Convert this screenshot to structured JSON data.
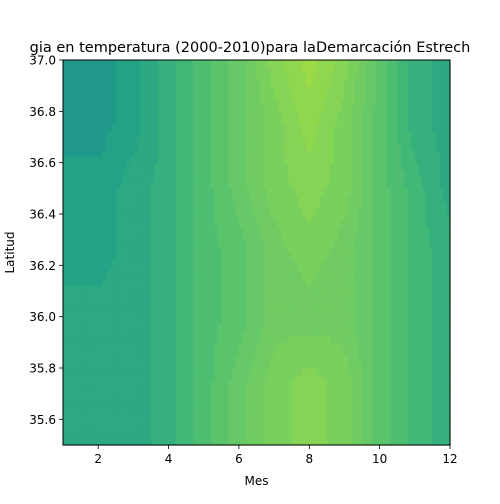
{
  "chart_data": {
    "type": "heatmap",
    "title": "gia en temperatura (2000-2010)para laDemarcación Estrech",
    "xlabel": "Mes",
    "ylabel": "Latitud",
    "xlim": [
      1,
      12
    ],
    "ylim": [
      35.5,
      37.0
    ],
    "xticks": [
      2,
      4,
      6,
      8,
      10,
      12
    ],
    "xtick_labels": [
      "2",
      "4",
      "6",
      "8",
      "10",
      "12"
    ],
    "yticks": [
      35.6,
      35.8,
      36.0,
      36.2,
      36.4,
      36.6,
      36.8,
      37.0
    ],
    "ytick_labels": [
      "35.6",
      "35.8",
      "36.0",
      "36.2",
      "36.4",
      "36.6",
      "36.8",
      "37.0"
    ],
    "grid": false,
    "legend": "none",
    "x": [
      1,
      2,
      3,
      4,
      5,
      6,
      7,
      8,
      9,
      10,
      11,
      12
    ],
    "y": [
      35.5,
      35.75,
      36.0,
      36.25,
      36.5,
      36.75,
      37.0
    ],
    "z": [
      [
        3,
        3,
        3,
        4,
        6,
        8,
        10,
        11,
        10,
        7,
        5,
        4
      ],
      [
        3,
        3,
        3,
        4,
        6,
        8,
        10,
        11,
        10,
        7,
        5,
        4
      ],
      [
        3,
        3,
        3,
        4,
        6,
        7,
        9,
        9,
        9,
        7,
        5,
        4
      ],
      [
        2,
        2,
        3,
        4,
        6,
        7,
        9,
        10,
        9,
        7,
        5,
        4
      ],
      [
        2,
        2,
        3,
        4,
        6,
        8,
        10,
        11,
        10,
        7,
        5,
        3
      ],
      [
        1,
        1,
        2,
        4,
        6,
        8,
        10,
        12,
        10,
        7,
        4,
        3
      ],
      [
        1,
        1,
        2,
        4,
        6,
        8,
        11,
        13,
        11,
        7,
        4,
        3
      ]
    ],
    "colorscale": [
      "#21918c",
      "#20998a",
      "#23a286",
      "#2ca882",
      "#36b07c",
      "#42b877",
      "#4ebe71",
      "#5ac46c",
      "#66c866",
      "#70cc62",
      "#7ad05c",
      "#86d455",
      "#91d74e",
      "#9cdb47"
    ]
  }
}
